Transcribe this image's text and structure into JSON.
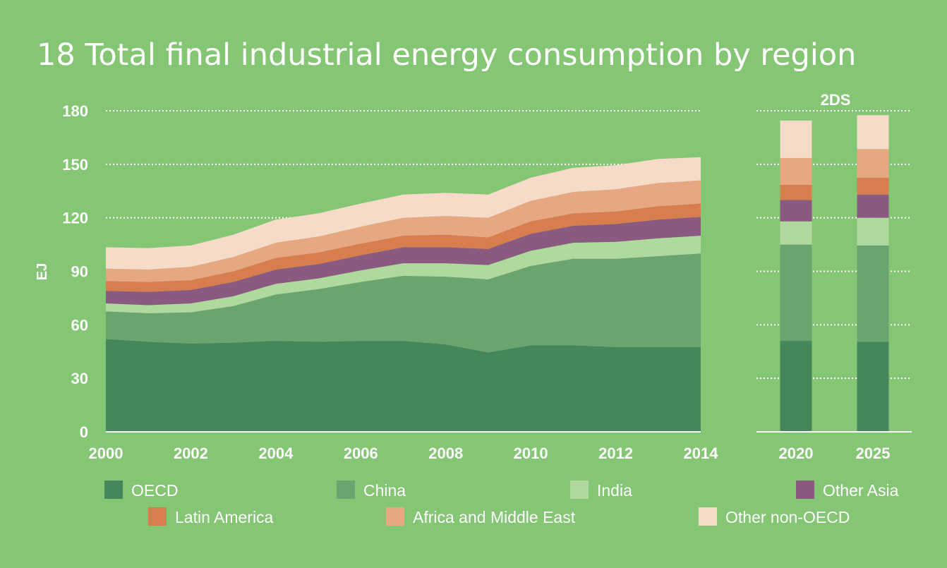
{
  "chart_data": {
    "type": "area",
    "title": "18 Total final industrial energy consumption by region",
    "ylabel": "EJ",
    "ylim": [
      0,
      180
    ],
    "yticks": [
      "0",
      "30",
      "60",
      "90",
      "120",
      "150",
      "180"
    ],
    "grid": true,
    "legend_position": "bottom",
    "x": [
      2000,
      2001,
      2002,
      2003,
      2004,
      2005,
      2006,
      2007,
      2008,
      2009,
      2010,
      2011,
      2012,
      2013,
      2014
    ],
    "xticks": [
      "2000",
      "2002",
      "2004",
      "2006",
      "2008",
      "2010",
      "2012",
      "2014"
    ],
    "series": [
      {
        "name": "OECD",
        "color": "#45865a",
        "values": [
          52,
          50.5,
          49.5,
          50,
          51,
          50.5,
          51,
          51,
          49,
          44.5,
          48.5,
          48.5,
          47.5,
          47.5,
          47.5
        ]
      },
      {
        "name": "China",
        "color": "#6aa56f",
        "values": [
          15.5,
          16,
          17.5,
          20.5,
          26,
          29.5,
          33,
          36.5,
          38,
          41,
          44.5,
          48.5,
          49.5,
          51,
          52.5
        ]
      },
      {
        "name": "India",
        "color": "#b0d99e",
        "values": [
          4.5,
          4.5,
          5,
          5.5,
          6,
          6,
          6.5,
          7,
          7.5,
          8,
          8.5,
          9,
          9.5,
          10,
          10
        ]
      },
      {
        "name": "Other Asia",
        "color": "#8a5a80",
        "values": [
          7,
          7.5,
          7.5,
          8,
          8,
          8,
          8.5,
          9,
          9,
          9,
          9.5,
          9.5,
          10,
          10.5,
          10.5
        ]
      },
      {
        "name": "Latin America",
        "color": "#d77d4e",
        "values": [
          5.5,
          5.5,
          5.5,
          6,
          6.5,
          6.5,
          6.5,
          6.5,
          7,
          6.5,
          7,
          7,
          7,
          7.5,
          7.5
        ]
      },
      {
        "name": "Africa and Middle East",
        "color": "#e7a782",
        "values": [
          7,
          7,
          7.5,
          8,
          8.5,
          9,
          9.5,
          10,
          10.5,
          11,
          11.5,
          12,
          12.5,
          13,
          13
        ]
      },
      {
        "name": "Other non-OECD",
        "color": "#f6dbc8",
        "values": [
          12,
          12,
          12,
          12.5,
          13,
          13,
          13,
          13,
          13,
          13,
          13,
          13.5,
          13.5,
          13.5,
          13
        ]
      }
    ],
    "scenario": {
      "label": "2DS",
      "categories": [
        "2020",
        "2025"
      ],
      "values": [
        [
          51,
          50.5
        ],
        [
          54,
          54
        ],
        [
          13,
          15.5
        ],
        [
          12,
          13
        ],
        [
          8.5,
          9.5
        ],
        [
          15,
          16
        ],
        [
          21,
          19
        ]
      ]
    }
  }
}
